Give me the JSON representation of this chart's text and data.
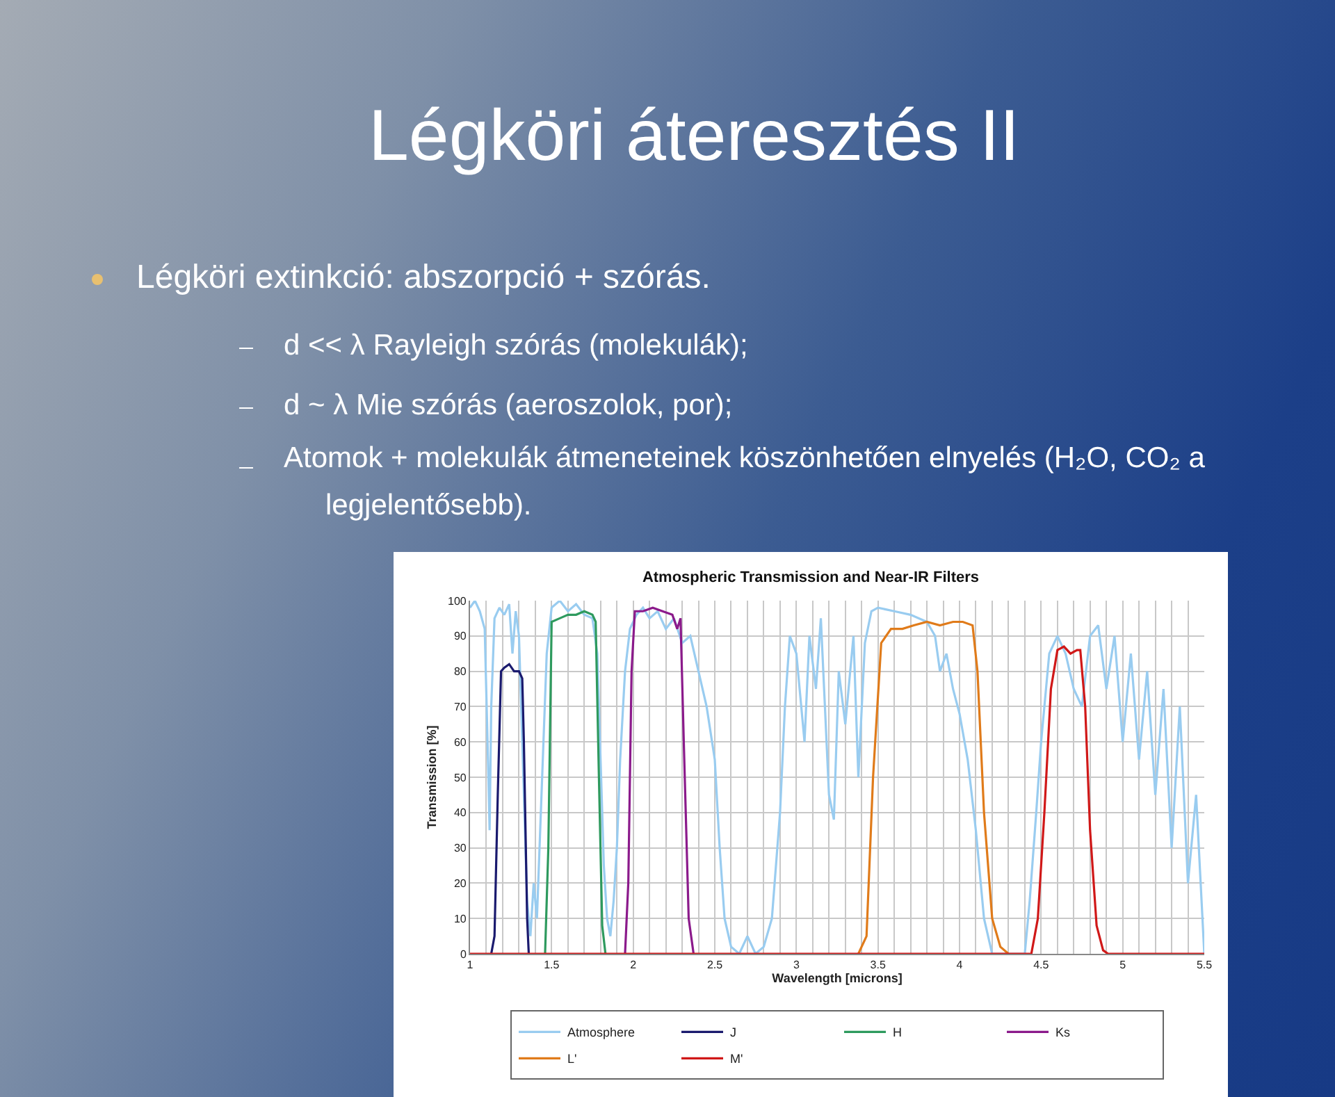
{
  "chart_data": {
    "type": "line",
    "title": "Atmospheric Transmission and Near-IR Filters",
    "xlabel": "Wavelength [microns]",
    "ylabel": "Transmission [%]",
    "annotations": [
      "Légköri áteresztés II",
      "Légköri extinkció: abszorpció + szórás.",
      "d << λ Rayleigh szórás (molekulák);",
      "d ~ λ Mie szórás (aeroszolok, por);",
      "Atomok + molekulák átmeneteinek köszönhetően elnyelés (H₂O, CO₂ a legjelentősebb)."
    ],
    "xlim": [
      1,
      5.5
    ],
    "ylim": [
      0,
      100
    ],
    "xticks": [
      1,
      {
        "value": 1.1,
        "label": null
      },
      {
        "value": 1.2,
        "label": null
      },
      {
        "value": 1.3,
        "label": null
      },
      {
        "value": 1.4,
        "label": null
      },
      1.5,
      {
        "value": 1.6,
        "label": null
      },
      {
        "value": 1.7,
        "label": null
      },
      {
        "value": 1.8,
        "label": null
      },
      {
        "value": 1.9,
        "label": null
      },
      2,
      {
        "value": 2.1,
        "label": null
      },
      {
        "value": 2.2,
        "label": null
      },
      {
        "value": 2.3,
        "label": null
      },
      {
        "value": 2.4,
        "label": null
      },
      2.5,
      {
        "value": 2.6,
        "label": null
      },
      {
        "value": 2.7,
        "label": null
      },
      {
        "value": 2.8,
        "label": null
      },
      {
        "value": 2.9,
        "label": null
      },
      3,
      {
        "value": 3.1,
        "label": null
      },
      {
        "value": 3.2,
        "label": null
      },
      {
        "value": 3.3,
        "label": null
      },
      {
        "value": 3.4,
        "label": null
      },
      3.5,
      {
        "value": 3.6,
        "label": null
      },
      {
        "value": 3.7,
        "label": null
      },
      {
        "value": 3.8,
        "label": null
      },
      {
        "value": 3.9,
        "label": null
      },
      4,
      {
        "value": 4.1,
        "label": null
      },
      {
        "value": 4.2,
        "label": null
      },
      {
        "value": 4.3,
        "label": null
      },
      {
        "value": 4.4,
        "label": null
      },
      4.5,
      {
        "value": 4.6,
        "label": null
      },
      {
        "value": 4.7,
        "label": null
      },
      {
        "value": 4.8,
        "label": null
      },
      {
        "value": 4.9,
        "label": null
      },
      5,
      {
        "value": 5.1,
        "label": null
      },
      {
        "value": 5.2,
        "label": null
      },
      {
        "value": 5.3,
        "label": null
      },
      {
        "value": 5.4,
        "label": null
      },
      5.5
    ],
    "yticks": [
      0,
      10,
      20,
      30,
      40,
      50,
      60,
      70,
      80,
      90,
      100
    ],
    "grid": true,
    "legend": "bottom",
    "marker": "none",
    "line_style": "solid",
    "series": [
      {
        "name": "Atmosphere",
        "color": "#99ccf0",
        "x": [
          1.0,
          1.03,
          1.06,
          1.09,
          1.11,
          1.12,
          1.13,
          1.15,
          1.18,
          1.21,
          1.24,
          1.26,
          1.28,
          1.3,
          1.32,
          1.34,
          1.35,
          1.37,
          1.39,
          1.41,
          1.43,
          1.45,
          1.47,
          1.5,
          1.55,
          1.6,
          1.65,
          1.7,
          1.75,
          1.78,
          1.8,
          1.82,
          1.84,
          1.86,
          1.88,
          1.9,
          1.92,
          1.95,
          1.98,
          2.02,
          2.06,
          2.1,
          2.15,
          2.2,
          2.25,
          2.3,
          2.35,
          2.4,
          2.45,
          2.5,
          2.53,
          2.56,
          2.6,
          2.65,
          2.7,
          2.75,
          2.8,
          2.85,
          2.9,
          2.93,
          2.96,
          3.0,
          3.05,
          3.08,
          3.12,
          3.15,
          3.2,
          3.23,
          3.26,
          3.3,
          3.35,
          3.38,
          3.42,
          3.46,
          3.5,
          3.6,
          3.7,
          3.8,
          3.85,
          3.88,
          3.92,
          3.96,
          4.0,
          4.05,
          4.1,
          4.15,
          4.2,
          4.3,
          4.4,
          4.43,
          4.47,
          4.5,
          4.55,
          4.6,
          4.65,
          4.7,
          4.75,
          4.8,
          4.85,
          4.9,
          4.95,
          5.0,
          5.05,
          5.1,
          5.15,
          5.2,
          5.25,
          5.3,
          5.35,
          5.4,
          5.45,
          5.5
        ],
        "values": [
          98,
          100,
          97,
          92,
          55,
          35,
          70,
          95,
          98,
          96,
          99,
          85,
          97,
          90,
          60,
          30,
          15,
          5,
          20,
          10,
          35,
          60,
          85,
          98,
          100,
          97,
          99,
          96,
          95,
          85,
          55,
          25,
          10,
          5,
          15,
          30,
          55,
          80,
          92,
          96,
          98,
          95,
          97,
          92,
          95,
          88,
          90,
          80,
          70,
          55,
          30,
          10,
          2,
          0,
          5,
          0,
          2,
          10,
          40,
          70,
          90,
          85,
          60,
          90,
          75,
          95,
          45,
          38,
          80,
          65,
          90,
          50,
          88,
          97,
          98,
          97,
          96,
          94,
          90,
          80,
          85,
          75,
          68,
          55,
          35,
          10,
          0,
          0,
          0,
          15,
          40,
          60,
          85,
          90,
          85,
          75,
          70,
          90,
          93,
          75,
          90,
          60,
          85,
          55,
          80,
          45,
          75,
          30,
          70,
          20,
          45,
          0
        ]
      },
      {
        "name": "J",
        "color": "#1a1a6e",
        "x": [
          1.13,
          1.15,
          1.17,
          1.19,
          1.21,
          1.24,
          1.27,
          1.3,
          1.32,
          1.33,
          1.35,
          1.36
        ],
        "values": [
          0,
          5,
          45,
          80,
          81,
          82,
          80,
          80,
          78,
          60,
          10,
          0
        ]
      },
      {
        "name": "H",
        "color": "#2e9a5e",
        "x": [
          1.46,
          1.48,
          1.5,
          1.55,
          1.6,
          1.65,
          1.7,
          1.75,
          1.77,
          1.79,
          1.81,
          1.83
        ],
        "values": [
          0,
          30,
          94,
          95,
          96,
          96,
          97,
          96,
          94,
          50,
          8,
          0
        ]
      },
      {
        "name": "Ks",
        "color": "#8b1a8b",
        "x": [
          1.95,
          1.97,
          1.99,
          2.01,
          2.06,
          2.12,
          2.18,
          2.24,
          2.27,
          2.29,
          2.31,
          2.34,
          2.37
        ],
        "values": [
          0,
          20,
          80,
          97,
          97,
          98,
          97,
          96,
          92,
          95,
          60,
          10,
          0
        ]
      },
      {
        "name": "L'",
        "color": "#e07b1a",
        "x": [
          3.38,
          3.43,
          3.47,
          3.52,
          3.58,
          3.65,
          3.72,
          3.8,
          3.88,
          3.96,
          4.02,
          4.08,
          4.11,
          4.15,
          4.2,
          4.25,
          4.3
        ],
        "values": [
          0,
          5,
          50,
          88,
          92,
          92,
          93,
          94,
          93,
          94,
          94,
          93,
          80,
          40,
          10,
          2,
          0
        ]
      },
      {
        "name": "M'",
        "color": "#d01818",
        "x": [
          1.0,
          4.44,
          4.48,
          4.52,
          4.56,
          4.6,
          4.64,
          4.68,
          4.72,
          4.74,
          4.77,
          4.8,
          4.84,
          4.88,
          4.91,
          5.5
        ],
        "values": [
          0,
          0,
          10,
          40,
          75,
          86,
          87,
          85,
          86,
          86,
          70,
          35,
          8,
          1,
          0,
          0
        ]
      }
    ]
  }
}
